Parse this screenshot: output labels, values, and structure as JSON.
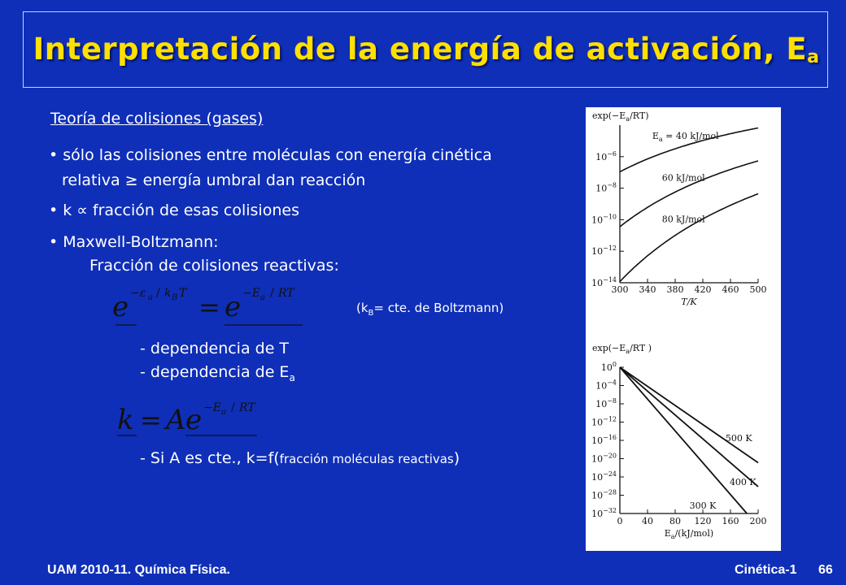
{
  "slide": {
    "title_main": "Interpretación de la energía de activación, E",
    "title_sub": "a",
    "section_heading": "Teoría de colisiones (gases)",
    "bullets": [
      "sólo las colisiones entre moléculas con energía cinética",
      "relativa ≥ energía umbral dan reacción",
      "k ∝ fracción de esas colisiones",
      "Maxwell-Boltzmann:",
      "Fracción de colisiones reactivas:"
    ],
    "bullet_glyph": "•",
    "kb_note_pre": "(k",
    "kb_note_sub": "B",
    "kb_note_post": "= cte. de Boltzmann)",
    "dep_T": "- dependencia de T",
    "dep_Ea_main": "- dependencia de E",
    "dep_Ea_sub": "a",
    "si_A_main": "- Si A es cte., k=f(",
    "si_A_small": "fracción moléculas reactivas",
    "si_A_close": ")",
    "eq1": {
      "e": "e",
      "minus_eps": "−ε",
      "eps_sub": "a",
      "slash": "/",
      "kB": "k",
      "kB_sub": "B",
      "T": "T",
      "equals": "=",
      "minus_E": "−E",
      "E_sub": "a",
      "RT": "RT"
    },
    "eq2": {
      "k": "k",
      "equals": "=",
      "A": "A",
      "e": "e",
      "minus_E": "−E",
      "E_sub": "a",
      "slash": "/",
      "RT": "RT"
    }
  },
  "footer": {
    "left": "UAM 2010-11.  Química Física.",
    "right_label": "Cinética-1",
    "page": "66"
  },
  "chart_data": [
    {
      "type": "line",
      "ylabel": "exp(−Ea/RT)",
      "xlabel": "T/K",
      "y_log10": true,
      "xlim": [
        300,
        500
      ],
      "ylim_log10": [
        -14,
        -4
      ],
      "x_ticks": [
        300,
        340,
        380,
        420,
        460,
        500
      ],
      "y_ticks": [
        "10−6",
        "10−8",
        "10−10",
        "10−12",
        "10−14"
      ],
      "y_tick_values_log10": [
        -6,
        -8,
        -10,
        -12,
        -14
      ],
      "series": [
        {
          "name": "Ea = 40 kJ/mol",
          "Ea_kJ": 40
        },
        {
          "name": "60 kJ/mol",
          "Ea_kJ": 60
        },
        {
          "name": "80 kJ/mol",
          "Ea_kJ": 80
        }
      ]
    },
    {
      "type": "line",
      "ylabel": "exp(−Ea/RT )",
      "xlabel": "Ea/(kJ/mol)",
      "y_log10": true,
      "xlim": [
        0,
        200
      ],
      "ylim_log10": [
        -32,
        0
      ],
      "x_ticks": [
        0,
        40,
        80,
        120,
        160,
        200
      ],
      "y_ticks": [
        "100",
        "10−4",
        "10−8",
        "10−12",
        "10−16",
        "10−20",
        "10−24",
        "10−28",
        "10−32"
      ],
      "y_tick_values_log10": [
        0,
        -4,
        -8,
        -12,
        -16,
        -20,
        -24,
        -28,
        -32
      ],
      "series": [
        {
          "name": "500 K",
          "T": 500
        },
        {
          "name": "400 K",
          "T": 400
        },
        {
          "name": "300 K",
          "T": 300
        }
      ]
    }
  ]
}
